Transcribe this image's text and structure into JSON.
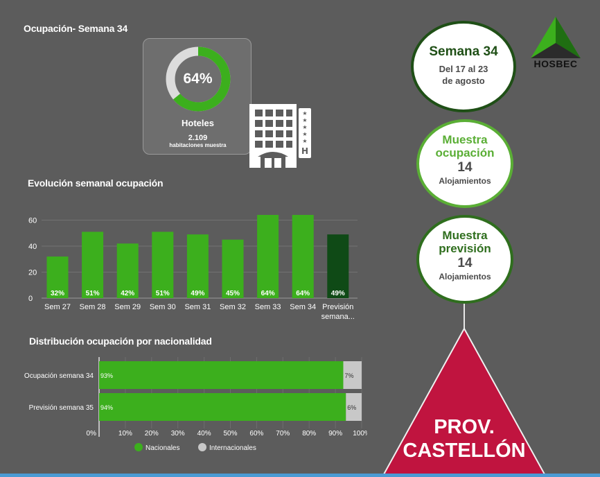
{
  "occupancy": {
    "title": "Ocupación- Semana 34",
    "value": 64,
    "value_label": "64%",
    "category": "Hoteles",
    "sample_count": "2.109",
    "sample_label": "habitaciones muestra"
  },
  "week_info": {
    "week_title": "Semana 34",
    "date_line1": "Del 17 al 23",
    "date_line2": "de agosto"
  },
  "sample_occupancy": {
    "title_line1": "Muestra",
    "title_line2": "ocupación",
    "count": "14",
    "unit": "Alojamientos"
  },
  "sample_forecast": {
    "title_line1": "Muestra",
    "title_line2": "previsión",
    "count": "14",
    "unit": "Alojamientos"
  },
  "province": {
    "line1": "PROV.",
    "line2": "CASTELLÓN"
  },
  "brand": {
    "name": "HOSBEC"
  },
  "colors": {
    "background": "#5c5c5c",
    "bar_green": "#3caf1d",
    "forecast_green": "#0f4a16",
    "international_gray": "#c8c8c8",
    "province_red": "#c0143f"
  },
  "chart_data": [
    {
      "type": "bar",
      "title": "Evolución semanal ocupación",
      "categories": [
        "Sem 27",
        "Sem 28",
        "Sem 29",
        "Sem 30",
        "Sem 31",
        "Sem 32",
        "Sem 33",
        "Sem 34",
        "Previsión semana..."
      ],
      "category_lines": [
        [
          "Sem 27"
        ],
        [
          "Sem 28"
        ],
        [
          "Sem 29"
        ],
        [
          "Sem 30"
        ],
        [
          "Sem 31"
        ],
        [
          "Sem 32"
        ],
        [
          "Sem 33"
        ],
        [
          "Sem 34"
        ],
        [
          "Previsión",
          "semana..."
        ]
      ],
      "values": [
        32,
        51,
        42,
        51,
        49,
        45,
        64,
        64,
        49
      ],
      "data_labels": [
        "32%",
        "51%",
        "42%",
        "51%",
        "49%",
        "45%",
        "64%",
        "64%",
        "49%"
      ],
      "ylim": [
        0,
        64
      ],
      "yticks": [
        0,
        20,
        40,
        60
      ],
      "xlabel": "",
      "ylabel": ""
    },
    {
      "type": "bar",
      "orientation": "horizontal-stacked",
      "title": "Distribución ocupación por nacionalidad",
      "categories": [
        "Ocupación semana 34",
        "Previsión semana 35"
      ],
      "series": [
        {
          "name": "Nacionales",
          "values": [
            93,
            94
          ],
          "labels": [
            "93%",
            "94%"
          ]
        },
        {
          "name": "Internacionales",
          "values": [
            7,
            6
          ],
          "labels": [
            "7%",
            "6%"
          ]
        }
      ],
      "xlim": [
        0,
        100
      ],
      "xticks": [
        "0%",
        "10%",
        "20%",
        "30%",
        "40%",
        "50%",
        "60%",
        "70%",
        "80%",
        "90%",
        "100%"
      ],
      "legend": "bottom"
    }
  ]
}
